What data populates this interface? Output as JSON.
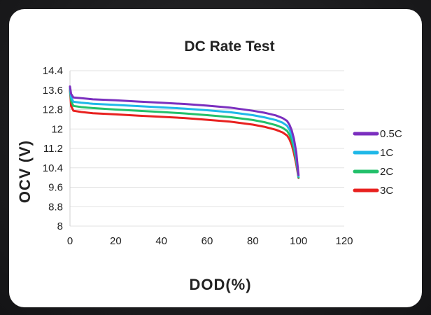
{
  "chart_data": {
    "type": "line",
    "title": "DC Rate Test",
    "xlabel": "DOD(%)",
    "ylabel": "OCV (V)",
    "xlim": [
      0,
      120
    ],
    "ylim": [
      8,
      14.4
    ],
    "xticks": [
      0,
      20,
      40,
      60,
      80,
      100,
      120
    ],
    "xtick_labels": [
      "0",
      "20",
      "40",
      "60",
      "80",
      "100",
      "120"
    ],
    "yticks": [
      8,
      8.8,
      9.6,
      10.4,
      11.2,
      12,
      12.8,
      13.6,
      14.4
    ],
    "ytick_labels": [
      "8",
      "8.8",
      "9.6",
      "10.4",
      "11.2",
      "12",
      "12.8",
      "13.6",
      "14.4"
    ],
    "grid": "horizontal",
    "legend_position": "right",
    "series": [
      {
        "name": "0.5C",
        "color": "#7b2fbf",
        "points": [
          [
            0,
            13.75
          ],
          [
            0.5,
            13.45
          ],
          [
            1.5,
            13.3
          ],
          [
            5,
            13.27
          ],
          [
            10,
            13.22
          ],
          [
            20,
            13.18
          ],
          [
            30,
            13.13
          ],
          [
            40,
            13.08
          ],
          [
            50,
            13.03
          ],
          [
            60,
            12.96
          ],
          [
            70,
            12.88
          ],
          [
            80,
            12.75
          ],
          [
            85,
            12.67
          ],
          [
            90,
            12.56
          ],
          [
            93,
            12.45
          ],
          [
            95,
            12.33
          ],
          [
            96,
            12.18
          ],
          [
            97,
            11.95
          ],
          [
            98,
            11.6
          ],
          [
            99,
            11.05
          ],
          [
            100,
            10.1
          ]
        ]
      },
      {
        "name": "1C",
        "color": "#1fb8e8",
        "points": [
          [
            0,
            13.7
          ],
          [
            0.5,
            13.3
          ],
          [
            1.5,
            13.12
          ],
          [
            5,
            13.08
          ],
          [
            10,
            13.04
          ],
          [
            20,
            12.99
          ],
          [
            30,
            12.94
          ],
          [
            40,
            12.89
          ],
          [
            50,
            12.84
          ],
          [
            60,
            12.77
          ],
          [
            70,
            12.69
          ],
          [
            80,
            12.57
          ],
          [
            85,
            12.48
          ],
          [
            90,
            12.37
          ],
          [
            93,
            12.26
          ],
          [
            95,
            12.13
          ],
          [
            96,
            11.98
          ],
          [
            97,
            11.75
          ],
          [
            98,
            11.4
          ],
          [
            99,
            10.85
          ],
          [
            100,
            10.05
          ]
        ]
      },
      {
        "name": "2C",
        "color": "#22c06a",
        "points": [
          [
            0,
            13.65
          ],
          [
            0.5,
            13.15
          ],
          [
            1.5,
            12.95
          ],
          [
            5,
            12.9
          ],
          [
            10,
            12.86
          ],
          [
            20,
            12.8
          ],
          [
            30,
            12.75
          ],
          [
            40,
            12.7
          ],
          [
            50,
            12.64
          ],
          [
            60,
            12.57
          ],
          [
            70,
            12.49
          ],
          [
            80,
            12.37
          ],
          [
            85,
            12.28
          ],
          [
            90,
            12.16
          ],
          [
            93,
            12.05
          ],
          [
            95,
            11.92
          ],
          [
            96,
            11.77
          ],
          [
            97,
            11.55
          ],
          [
            98,
            11.2
          ],
          [
            99,
            10.7
          ],
          [
            100,
            10.0
          ]
        ]
      },
      {
        "name": "3C",
        "color": "#e8211f",
        "points": [
          [
            0,
            13.6
          ],
          [
            0.5,
            12.95
          ],
          [
            1.5,
            12.75
          ],
          [
            5,
            12.7
          ],
          [
            10,
            12.65
          ],
          [
            20,
            12.6
          ],
          [
            30,
            12.55
          ],
          [
            40,
            12.5
          ],
          [
            50,
            12.45
          ],
          [
            60,
            12.38
          ],
          [
            70,
            12.3
          ],
          [
            80,
            12.18
          ],
          [
            85,
            12.09
          ],
          [
            90,
            11.97
          ],
          [
            93,
            11.86
          ],
          [
            95,
            11.73
          ],
          [
            96,
            11.58
          ],
          [
            97,
            11.35
          ],
          [
            98,
            11.0
          ],
          [
            99,
            10.55
          ],
          [
            100,
            9.98
          ]
        ]
      }
    ]
  }
}
